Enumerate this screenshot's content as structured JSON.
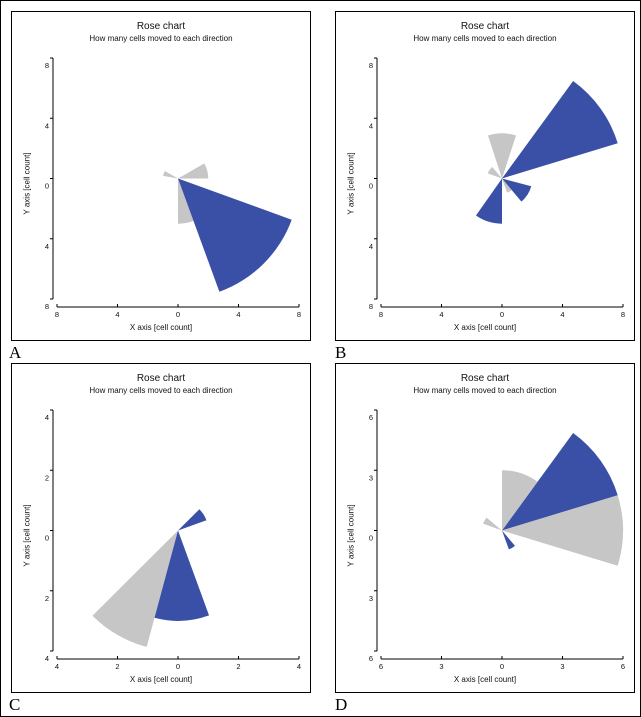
{
  "colors": {
    "gray": "#c6c6c6",
    "blue": "#3a4fa6"
  },
  "panel_letters": [
    "A",
    "B",
    "C",
    "D"
  ],
  "chart_data": [
    {
      "type": "rose",
      "letter": "A",
      "title": "Rose chart",
      "subtitle": "How many cells moved to each direction",
      "xlabel": "X axis [cell count]",
      "ylabel": "Y axis [cell count]",
      "xlim": [
        -8,
        8
      ],
      "ylim": [
        -8,
        8
      ],
      "xticks": [
        "8",
        "4",
        "0",
        "4",
        "8"
      ],
      "yticks": [
        "8",
        "4",
        "0",
        "4",
        "8"
      ],
      "sectors": [
        {
          "start_deg": 0,
          "end_deg": 30,
          "radius": 2.0,
          "color": "gray"
        },
        {
          "start_deg": 150,
          "end_deg": 170,
          "radius": 1.0,
          "color": "gray"
        },
        {
          "start_deg": 270,
          "end_deg": 290,
          "radius": 3.0,
          "color": "gray"
        },
        {
          "start_deg": 290,
          "end_deg": 340,
          "radius": 8.0,
          "color": "blue"
        }
      ]
    },
    {
      "type": "rose",
      "letter": "B",
      "title": "Rose chart",
      "subtitle": "How many cells moved to each direction",
      "xlabel": "X axis [cell count]",
      "ylabel": "Y axis [cell count]",
      "xlim": [
        -8,
        8
      ],
      "ylim": [
        -8,
        8
      ],
      "xticks": [
        "8",
        "4",
        "0",
        "4",
        "8"
      ],
      "yticks": [
        "8",
        "4",
        "0",
        "4",
        "8"
      ],
      "sectors": [
        {
          "start_deg": 17,
          "end_deg": 54,
          "radius": 8.0,
          "color": "blue"
        },
        {
          "start_deg": 72,
          "end_deg": 108,
          "radius": 3.0,
          "color": "gray"
        },
        {
          "start_deg": 130,
          "end_deg": 160,
          "radius": 1.0,
          "color": "gray"
        },
        {
          "start_deg": 235,
          "end_deg": 270,
          "radius": 3.0,
          "color": "blue"
        },
        {
          "start_deg": 290,
          "end_deg": 310,
          "radius": 1.0,
          "color": "gray"
        },
        {
          "start_deg": 310,
          "end_deg": 345,
          "radius": 2.0,
          "color": "blue"
        }
      ]
    },
    {
      "type": "rose",
      "letter": "C",
      "title": "Rose chart",
      "subtitle": "How many cells moved to each direction",
      "xlabel": "X axis [cell count]",
      "ylabel": "Y axis [cell count]",
      "xlim": [
        -4,
        4
      ],
      "ylim": [
        -4,
        4
      ],
      "xticks": [
        "4",
        "2",
        "0",
        "2",
        "4"
      ],
      "yticks": [
        "4",
        "2",
        "0",
        "2",
        "4"
      ],
      "sectors": [
        {
          "start_deg": 20,
          "end_deg": 45,
          "radius": 1.0,
          "color": "blue"
        },
        {
          "start_deg": 225,
          "end_deg": 255,
          "radius": 4.0,
          "color": "gray"
        },
        {
          "start_deg": 255,
          "end_deg": 290,
          "radius": 3.0,
          "color": "blue"
        }
      ]
    },
    {
      "type": "rose",
      "letter": "D",
      "title": "Rose chart",
      "subtitle": "How many cells moved to each direction",
      "xlabel": "X axis [cell count]",
      "ylabel": "Y axis [cell count]",
      "xlim": [
        -6,
        6
      ],
      "ylim": [
        -6,
        6
      ],
      "xticks": [
        "6",
        "3",
        "0",
        "3",
        "6"
      ],
      "yticks": [
        "6",
        "3",
        "0",
        "3",
        "6"
      ],
      "sectors": [
        {
          "start_deg": 17,
          "end_deg": 54,
          "radius": 6.0,
          "color": "blue"
        },
        {
          "start_deg": 54,
          "end_deg": 90,
          "radius": 3.0,
          "color": "gray"
        },
        {
          "start_deg": 140,
          "end_deg": 160,
          "radius": 1.0,
          "color": "gray"
        },
        {
          "start_deg": 290,
          "end_deg": 310,
          "radius": 1.0,
          "color": "blue"
        },
        {
          "start_deg": -17,
          "end_deg": 17,
          "radius": 6.0,
          "color": "gray"
        }
      ]
    }
  ]
}
